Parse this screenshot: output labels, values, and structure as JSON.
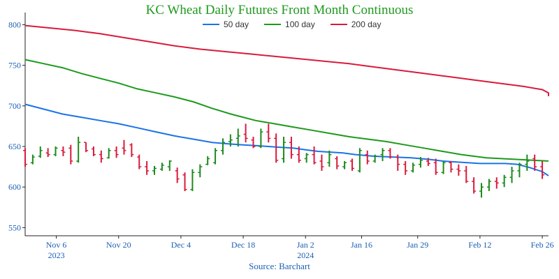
{
  "chart_data": {
    "type": "line",
    "title": "KC Wheat Daily Futures Front Month Continuous",
    "source": "Source: Barchart",
    "ylim": [
      540,
      815
    ],
    "y_ticks": [
      550,
      600,
      650,
      700,
      750,
      800
    ],
    "x_ticks": [
      {
        "label": "Nov 6",
        "sublabel": "2023",
        "i": 5
      },
      {
        "label": "Nov 20",
        "i": 15
      },
      {
        "label": "Dec 4",
        "i": 25
      },
      {
        "label": "Dec 18",
        "i": 35
      },
      {
        "label": "Jan 2",
        "sublabel": "2024",
        "i": 45
      },
      {
        "label": "Jan 16",
        "i": 54
      },
      {
        "label": "Jan 29",
        "i": 63
      },
      {
        "label": "Feb 12",
        "i": 73
      },
      {
        "label": "Feb 26",
        "i": 83
      }
    ],
    "x_range": [
      0,
      84
    ],
    "legend_position": "top-center",
    "series": [
      {
        "name": "50 day",
        "color": "#1a73e8",
        "values": [
          702,
          696,
          690,
          686,
          682,
          678,
          673,
          668,
          663,
          659,
          655,
          653,
          652,
          651,
          650,
          649,
          648,
          646,
          644,
          643,
          642,
          640,
          638,
          637,
          636,
          634,
          632,
          631,
          630,
          629,
          629,
          629,
          628,
          624,
          619,
          614
        ],
        "x": [
          0,
          3,
          6,
          9,
          12,
          15,
          18,
          21,
          24,
          27,
          30,
          33,
          35,
          37,
          39,
          41,
          43,
          45,
          47,
          49,
          51,
          53,
          56,
          59,
          62,
          65,
          67,
          69,
          71,
          73,
          75,
          77,
          79,
          81,
          83,
          84
        ]
      },
      {
        "name": "100 day",
        "color": "#1c9a1c",
        "values": [
          757,
          752,
          747,
          740,
          734,
          728,
          721,
          716,
          711,
          705,
          697,
          690,
          686,
          682,
          678,
          674,
          670,
          666,
          662,
          659,
          656,
          652,
          648,
          644,
          640,
          636,
          632
        ],
        "x": [
          0,
          3,
          6,
          9,
          12,
          15,
          18,
          21,
          24,
          27,
          30,
          33,
          35,
          37,
          40,
          43,
          46,
          49,
          52,
          55,
          58,
          61,
          64,
          67,
          70,
          74,
          84
        ]
      },
      {
        "name": "200 day",
        "color": "#d81b3c",
        "values": [
          799,
          796,
          793,
          789,
          784,
          779,
          774,
          770,
          767,
          764,
          761,
          758,
          755,
          752,
          748,
          744,
          740,
          736,
          732,
          728,
          724,
          720,
          716,
          712
        ],
        "x": [
          0,
          4,
          8,
          12,
          16,
          20,
          24,
          28,
          32,
          36,
          40,
          44,
          48,
          52,
          56,
          60,
          64,
          68,
          72,
          76,
          80,
          83,
          84,
          84
        ]
      }
    ],
    "ohlc": [
      {
        "o": 645,
        "h": 648,
        "l": 625,
        "c": 628
      },
      {
        "o": 630,
        "h": 640,
        "l": 628,
        "c": 637
      },
      {
        "o": 638,
        "h": 650,
        "l": 636,
        "c": 645
      },
      {
        "o": 642,
        "h": 648,
        "l": 637,
        "c": 640
      },
      {
        "o": 640,
        "h": 650,
        "l": 638,
        "c": 648
      },
      {
        "o": 645,
        "h": 650,
        "l": 638,
        "c": 643
      },
      {
        "o": 648,
        "h": 652,
        "l": 628,
        "c": 632
      },
      {
        "o": 632,
        "h": 662,
        "l": 630,
        "c": 655
      },
      {
        "o": 655,
        "h": 655,
        "l": 643,
        "c": 645
      },
      {
        "o": 647,
        "h": 650,
        "l": 638,
        "c": 640
      },
      {
        "o": 640,
        "h": 645,
        "l": 630,
        "c": 635
      },
      {
        "o": 636,
        "h": 648,
        "l": 635,
        "c": 645
      },
      {
        "o": 645,
        "h": 650,
        "l": 636,
        "c": 640
      },
      {
        "o": 648,
        "h": 658,
        "l": 640,
        "c": 645
      },
      {
        "o": 652,
        "h": 654,
        "l": 637,
        "c": 640
      },
      {
        "o": 637,
        "h": 640,
        "l": 622,
        "c": 625
      },
      {
        "o": 625,
        "h": 632,
        "l": 615,
        "c": 620
      },
      {
        "o": 620,
        "h": 626,
        "l": 615,
        "c": 623
      },
      {
        "o": 622,
        "h": 630,
        "l": 620,
        "c": 627
      },
      {
        "o": 625,
        "h": 633,
        "l": 620,
        "c": 632
      },
      {
        "o": 620,
        "h": 624,
        "l": 605,
        "c": 610
      },
      {
        "o": 615,
        "h": 618,
        "l": 595,
        "c": 597
      },
      {
        "o": 597,
        "h": 622,
        "l": 595,
        "c": 618
      },
      {
        "o": 618,
        "h": 628,
        "l": 612,
        "c": 625
      },
      {
        "o": 628,
        "h": 638,
        "l": 627,
        "c": 635
      },
      {
        "o": 630,
        "h": 648,
        "l": 628,
        "c": 645
      },
      {
        "o": 645,
        "h": 660,
        "l": 640,
        "c": 655
      },
      {
        "o": 656,
        "h": 665,
        "l": 650,
        "c": 658
      },
      {
        "o": 660,
        "h": 672,
        "l": 650,
        "c": 663
      },
      {
        "o": 665,
        "h": 678,
        "l": 655,
        "c": 660
      },
      {
        "o": 658,
        "h": 662,
        "l": 648,
        "c": 650
      },
      {
        "o": 650,
        "h": 672,
        "l": 648,
        "c": 668
      },
      {
        "o": 668,
        "h": 678,
        "l": 655,
        "c": 660
      },
      {
        "o": 660,
        "h": 666,
        "l": 630,
        "c": 633
      },
      {
        "o": 635,
        "h": 662,
        "l": 630,
        "c": 655
      },
      {
        "o": 655,
        "h": 662,
        "l": 635,
        "c": 640
      },
      {
        "o": 640,
        "h": 650,
        "l": 630,
        "c": 633
      },
      {
        "o": 635,
        "h": 642,
        "l": 630,
        "c": 640
      },
      {
        "o": 640,
        "h": 650,
        "l": 628,
        "c": 630
      },
      {
        "o": 632,
        "h": 640,
        "l": 620,
        "c": 625
      },
      {
        "o": 630,
        "h": 645,
        "l": 625,
        "c": 640
      },
      {
        "o": 635,
        "h": 638,
        "l": 622,
        "c": 626
      },
      {
        "o": 625,
        "h": 632,
        "l": 622,
        "c": 630
      },
      {
        "o": 632,
        "h": 635,
        "l": 620,
        "c": 623
      },
      {
        "o": 620,
        "h": 648,
        "l": 618,
        "c": 645
      },
      {
        "o": 640,
        "h": 645,
        "l": 628,
        "c": 632
      },
      {
        "o": 632,
        "h": 640,
        "l": 630,
        "c": 638
      },
      {
        "o": 640,
        "h": 648,
        "l": 632,
        "c": 645
      },
      {
        "o": 645,
        "h": 648,
        "l": 635,
        "c": 637
      },
      {
        "o": 637,
        "h": 640,
        "l": 620,
        "c": 628
      },
      {
        "o": 628,
        "h": 632,
        "l": 615,
        "c": 620
      },
      {
        "o": 620,
        "h": 630,
        "l": 618,
        "c": 627
      },
      {
        "o": 628,
        "h": 637,
        "l": 624,
        "c": 633
      },
      {
        "o": 632,
        "h": 636,
        "l": 626,
        "c": 629
      },
      {
        "o": 630,
        "h": 635,
        "l": 615,
        "c": 618
      },
      {
        "o": 618,
        "h": 632,
        "l": 616,
        "c": 630
      },
      {
        "o": 630,
        "h": 632,
        "l": 618,
        "c": 622
      },
      {
        "o": 622,
        "h": 628,
        "l": 614,
        "c": 620
      },
      {
        "o": 620,
        "h": 626,
        "l": 605,
        "c": 607
      },
      {
        "o": 607,
        "h": 612,
        "l": 592,
        "c": 595
      },
      {
        "o": 595,
        "h": 605,
        "l": 587,
        "c": 600
      },
      {
        "o": 600,
        "h": 610,
        "l": 595,
        "c": 607
      },
      {
        "o": 607,
        "h": 612,
        "l": 598,
        "c": 605
      },
      {
        "o": 605,
        "h": 615,
        "l": 600,
        "c": 612
      },
      {
        "o": 612,
        "h": 625,
        "l": 605,
        "c": 620
      },
      {
        "o": 620,
        "h": 630,
        "l": 612,
        "c": 628
      },
      {
        "o": 628,
        "h": 640,
        "l": 620,
        "c": 632
      },
      {
        "o": 635,
        "h": 640,
        "l": 620,
        "c": 625
      },
      {
        "o": 625,
        "h": 632,
        "l": 610,
        "c": 615
      }
    ]
  }
}
